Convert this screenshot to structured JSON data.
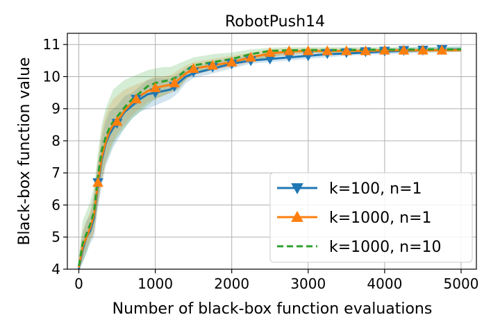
{
  "chart_data": {
    "type": "line",
    "title": "RobotPush14",
    "xlabel": "Number of black-box function evaluations",
    "ylabel": "Black-box function value",
    "xlim": [
      -150,
      5200
    ],
    "ylim": [
      4,
      11.35
    ],
    "xticks": [
      0,
      1000,
      2000,
      3000,
      4000,
      5000
    ],
    "yticks": [
      4,
      5,
      6,
      7,
      8,
      9,
      10,
      11
    ],
    "grid": true,
    "legend_position": "lower-right",
    "series": [
      {
        "name": "k=100, n=1",
        "color": "#1f77b4",
        "marker": "triangle-down",
        "linestyle": "solid",
        "x": [
          0,
          50,
          100,
          150,
          200,
          250,
          300,
          350,
          400,
          450,
          500,
          600,
          700,
          800,
          900,
          1000,
          1100,
          1200,
          1300,
          1400,
          1500,
          1750,
          2000,
          2250,
          2500,
          2750,
          3000,
          3250,
          3500,
          3750,
          4000,
          4250,
          4500,
          4750,
          5000
        ],
        "y": [
          4.0,
          4.6,
          5.0,
          5.2,
          5.6,
          6.6,
          7.4,
          7.9,
          8.2,
          8.4,
          8.55,
          8.9,
          9.1,
          9.3,
          9.45,
          9.5,
          9.55,
          9.6,
          9.8,
          10.0,
          10.1,
          10.25,
          10.4,
          10.5,
          10.55,
          10.6,
          10.65,
          10.7,
          10.72,
          10.75,
          10.78,
          10.8,
          10.82,
          10.83,
          10.85
        ],
        "marker_x": [
          250,
          500,
          750,
          1000,
          1250,
          1500,
          1750,
          2000,
          2250,
          2500,
          2750,
          3000,
          3250,
          3500,
          3750,
          4000,
          4250,
          4500,
          4750
        ],
        "marker_y": [
          6.7,
          8.55,
          9.3,
          9.5,
          9.7,
          10.15,
          10.3,
          10.4,
          10.5,
          10.55,
          10.62,
          10.65,
          10.72,
          10.75,
          10.78,
          10.8,
          10.82,
          10.83,
          10.85
        ],
        "band_lower": [
          3.8,
          4.2,
          4.5,
          4.8,
          5.0,
          5.9,
          6.6,
          7.2,
          7.5,
          7.8,
          8.0,
          8.4,
          8.7,
          8.9,
          9.0,
          9.1,
          9.2,
          9.3,
          9.5,
          9.8,
          9.95,
          10.1,
          10.25,
          10.4,
          10.45,
          10.5,
          10.55,
          10.6,
          10.65,
          10.68,
          10.7,
          10.72,
          10.74,
          10.75,
          10.77
        ],
        "band_upper": [
          4.2,
          5.1,
          5.5,
          5.7,
          6.3,
          7.3,
          8.1,
          8.6,
          8.9,
          9.0,
          9.1,
          9.4,
          9.5,
          9.7,
          9.9,
          9.95,
          9.95,
          9.95,
          10.1,
          10.25,
          10.3,
          10.45,
          10.6,
          10.65,
          10.7,
          10.72,
          10.75,
          10.8,
          10.82,
          10.85,
          10.88,
          10.9,
          10.92,
          10.93,
          10.95
        ]
      },
      {
        "name": "k=1000, n=1",
        "color": "#ff7f0e",
        "marker": "triangle-up",
        "linestyle": "solid",
        "x": [
          0,
          50,
          100,
          150,
          200,
          250,
          300,
          350,
          400,
          450,
          500,
          600,
          700,
          800,
          900,
          1000,
          1100,
          1200,
          1300,
          1400,
          1500,
          1750,
          2000,
          2250,
          2500,
          2750,
          3000,
          3250,
          3500,
          3750,
          4000,
          4250,
          4500,
          4750,
          5000
        ],
        "y": [
          4.05,
          4.7,
          5.0,
          5.3,
          5.7,
          6.7,
          7.5,
          7.95,
          8.3,
          8.5,
          8.6,
          8.95,
          9.2,
          9.4,
          9.55,
          9.65,
          9.7,
          9.75,
          9.9,
          10.1,
          10.25,
          10.35,
          10.45,
          10.6,
          10.72,
          10.78,
          10.8,
          10.8,
          10.8,
          10.8,
          10.82,
          10.82,
          10.82,
          10.82,
          10.83
        ],
        "marker_x": [
          250,
          500,
          750,
          1000,
          1250,
          1500,
          1750,
          2000,
          2250,
          2500,
          2750,
          3000,
          3250,
          3500,
          3750,
          4000,
          4250,
          4500,
          4750
        ],
        "marker_y": [
          6.7,
          8.6,
          9.3,
          9.65,
          9.8,
          10.25,
          10.35,
          10.45,
          10.6,
          10.75,
          10.8,
          10.8,
          10.8,
          10.8,
          10.8,
          10.82,
          10.82,
          10.82,
          10.82
        ],
        "band_lower": [
          3.9,
          4.3,
          4.6,
          4.9,
          5.1,
          6.0,
          6.7,
          7.3,
          7.7,
          8.0,
          8.2,
          8.5,
          8.8,
          9.0,
          9.2,
          9.3,
          9.4,
          9.5,
          9.6,
          9.9,
          10.05,
          10.2,
          10.3,
          10.45,
          10.6,
          10.68,
          10.72,
          10.73,
          10.74,
          10.75,
          10.76,
          10.76,
          10.76,
          10.77,
          10.78
        ],
        "band_upper": [
          4.2,
          5.2,
          5.5,
          5.8,
          6.4,
          7.4,
          8.3,
          8.8,
          9.1,
          9.3,
          9.4,
          9.6,
          9.7,
          9.8,
          9.9,
          10.0,
          10.0,
          10.05,
          10.2,
          10.35,
          10.45,
          10.55,
          10.65,
          10.75,
          10.85,
          10.88,
          10.88,
          10.88,
          10.88,
          10.88,
          10.88,
          10.88,
          10.88,
          10.88,
          10.88
        ]
      },
      {
        "name": "k=1000, n=10",
        "color": "#2ca02c",
        "marker": "none",
        "linestyle": "dashed",
        "x": [
          0,
          50,
          100,
          150,
          200,
          250,
          300,
          350,
          400,
          450,
          500,
          600,
          700,
          800,
          900,
          1000,
          1100,
          1200,
          1300,
          1400,
          1500,
          1750,
          2000,
          2250,
          2500,
          2750,
          3000,
          3250,
          3500,
          3750,
          4000,
          4250,
          4500,
          4750,
          5000
        ],
        "y": [
          4.1,
          4.8,
          5.1,
          5.4,
          5.8,
          6.9,
          7.7,
          8.1,
          8.4,
          8.6,
          8.75,
          9.05,
          9.3,
          9.5,
          9.7,
          9.8,
          9.85,
          9.9,
          10.0,
          10.2,
          10.35,
          10.45,
          10.55,
          10.7,
          10.8,
          10.82,
          10.83,
          10.83,
          10.83,
          10.84,
          10.84,
          10.84,
          10.85,
          10.85,
          10.85
        ],
        "band_lower": [
          3.9,
          4.2,
          4.5,
          4.9,
          5.2,
          6.0,
          6.8,
          7.3,
          7.6,
          7.9,
          8.1,
          8.4,
          8.7,
          8.9,
          9.1,
          9.3,
          9.4,
          9.5,
          9.6,
          9.9,
          10.1,
          10.25,
          10.35,
          10.5,
          10.6,
          10.7,
          10.72,
          10.74,
          10.74,
          10.75,
          10.76,
          10.76,
          10.77,
          10.77,
          10.77
        ],
        "band_upper": [
          4.4,
          5.5,
          5.8,
          6.1,
          6.6,
          7.6,
          8.5,
          9.0,
          9.3,
          9.6,
          9.7,
          9.9,
          10.0,
          10.1,
          10.2,
          10.25,
          10.3,
          10.3,
          10.4,
          10.5,
          10.6,
          10.7,
          10.75,
          10.85,
          10.9,
          10.92,
          10.92,
          10.92,
          10.92,
          10.92,
          10.92,
          10.92,
          10.92,
          10.92,
          10.92
        ]
      }
    ]
  }
}
